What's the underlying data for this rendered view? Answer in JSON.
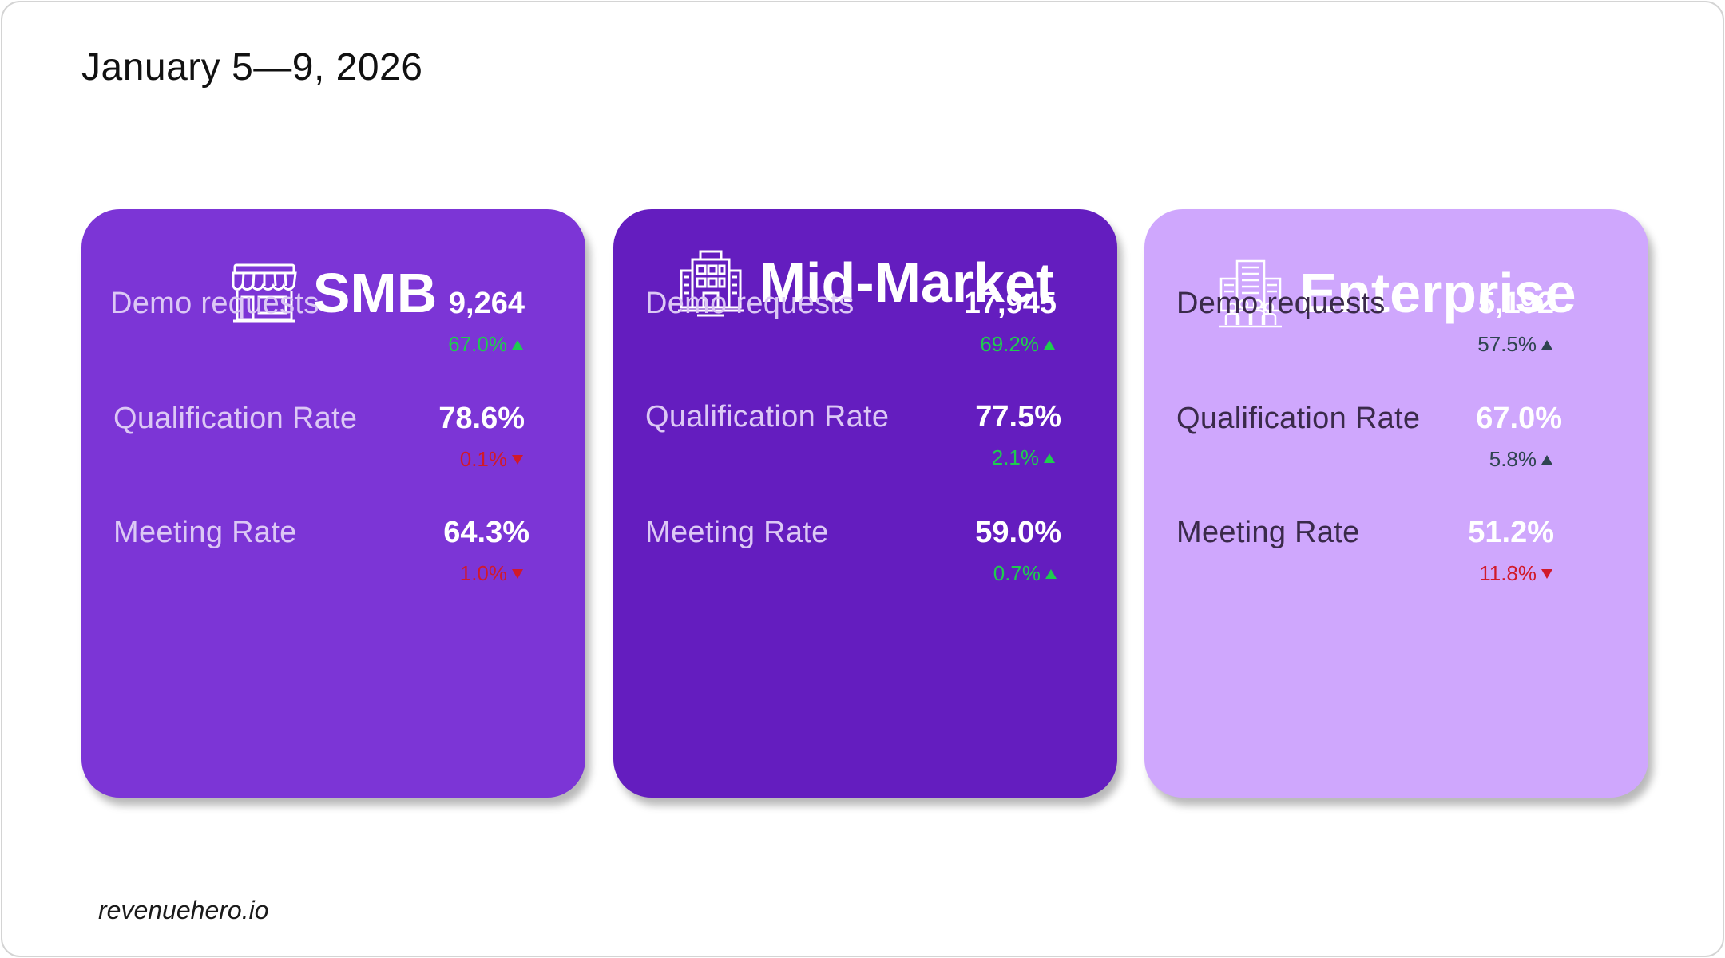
{
  "date_range": "January 5—9, 2026",
  "footer": "revenuehero.io",
  "colors": {
    "smb": "#7c35d6",
    "mid_market": "#641dbf",
    "enterprise": "#cfa7fd",
    "up": "#1fcc4f",
    "down": "#d11a2a"
  },
  "segments": [
    {
      "title": "SMB",
      "icon": "storefront-icon",
      "metrics": [
        {
          "label": "Demo requests",
          "value": "9,264",
          "change": "67.0%",
          "direction": "up"
        },
        {
          "label": "Qualification Rate",
          "value": "78.6%",
          "change": "0.1%",
          "direction": "down"
        },
        {
          "label": "Meeting Rate",
          "value": "64.3%",
          "change": "1.0%",
          "direction": "down"
        }
      ]
    },
    {
      "title": "Mid-Market",
      "icon": "office-building-icon",
      "metrics": [
        {
          "label": "Demo requests",
          "value": "17,945",
          "change": "69.2%",
          "direction": "up"
        },
        {
          "label": "Qualification Rate",
          "value": "77.5%",
          "change": "2.1%",
          "direction": "up"
        },
        {
          "label": "Meeting Rate",
          "value": "59.0%",
          "change": "0.7%",
          "direction": "up"
        }
      ]
    },
    {
      "title": "Enterprise",
      "icon": "enterprise-building-icon",
      "metrics": [
        {
          "label": "Demo requests",
          "value": "5,192",
          "change": "57.5%",
          "direction": "up"
        },
        {
          "label": "Qualification Rate",
          "value": "67.0%",
          "change": "5.8%",
          "direction": "up"
        },
        {
          "label": "Meeting Rate",
          "value": "51.2%",
          "change": "11.8%",
          "direction": "down"
        }
      ]
    }
  ]
}
